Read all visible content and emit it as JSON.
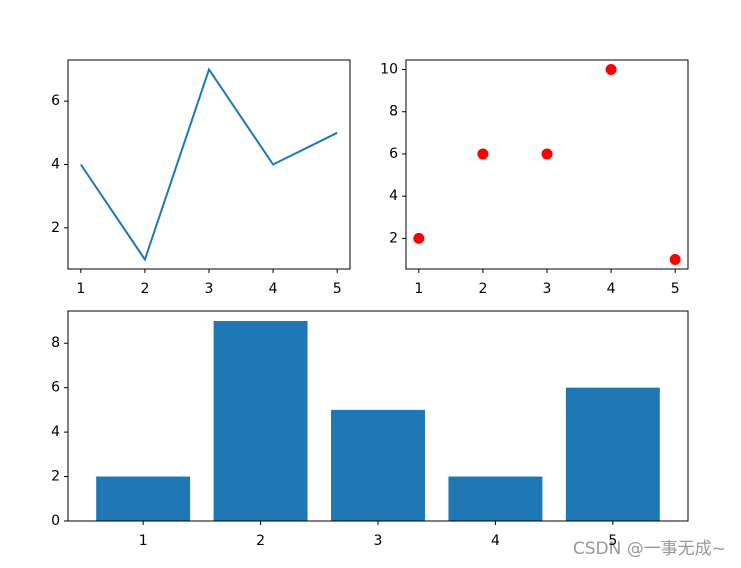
{
  "chart_data": [
    {
      "type": "line",
      "x": [
        1,
        2,
        3,
        4,
        5
      ],
      "values": [
        4,
        1,
        7,
        4,
        5
      ],
      "color": "#1f77b4",
      "xlim": [
        0.8,
        5.2
      ],
      "xticks": [
        1,
        2,
        3,
        4,
        5
      ],
      "ylim": [
        0.7,
        7.3
      ],
      "yticks": [
        2,
        4,
        6
      ]
    },
    {
      "type": "scatter",
      "x": [
        1,
        2,
        3,
        4,
        5
      ],
      "values": [
        2,
        6,
        6,
        10,
        1
      ],
      "color": "#ff0000",
      "xlim": [
        0.8,
        5.2
      ],
      "xticks": [
        1,
        2,
        3,
        4,
        5
      ],
      "ylim": [
        0.55,
        10.45
      ],
      "yticks": [
        2,
        4,
        6,
        8,
        10
      ]
    },
    {
      "type": "bar",
      "x": [
        1,
        2,
        3,
        4,
        5
      ],
      "values": [
        2,
        9,
        5,
        2,
        6
      ],
      "color": "#1f77b4",
      "xlim": [
        0.36,
        5.64
      ],
      "xticks": [
        1,
        2,
        3,
        4,
        5
      ],
      "ylim": [
        0,
        9.45
      ],
      "yticks": [
        0,
        2,
        4,
        6,
        8
      ]
    }
  ],
  "watermark": "CSDN @一事无成~"
}
